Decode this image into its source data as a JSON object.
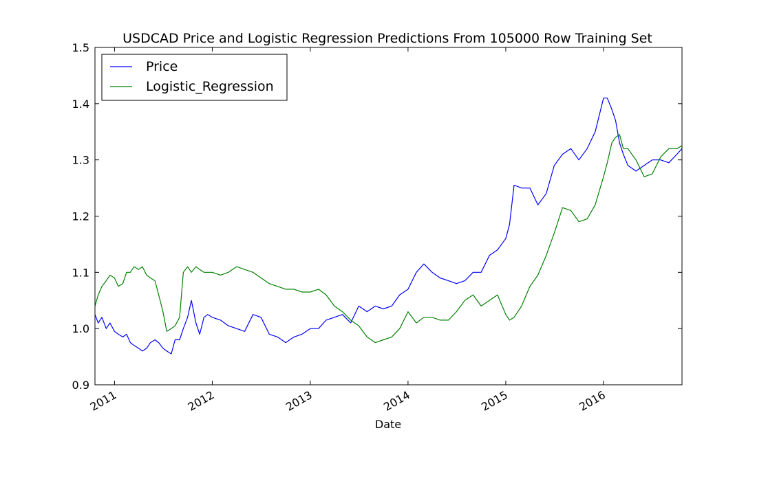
{
  "chart_data": {
    "type": "line",
    "title": "USDCAD Price and Logistic Regression Predictions From 105000 Row Training Set",
    "xlabel": "Date",
    "ylabel": "",
    "ylim": [
      0.9,
      1.5
    ],
    "yticks": [
      0.9,
      1.0,
      1.1,
      1.2,
      1.3,
      1.4,
      1.5
    ],
    "ytick_labels": [
      "0.9",
      "1.0",
      "1.1",
      "1.2",
      "1.3",
      "1.4",
      "1.5"
    ],
    "xlim": [
      "2010-10-20",
      "2016-10-20"
    ],
    "xticks": [
      "2011-01-01",
      "2012-01-01",
      "2013-01-01",
      "2014-01-01",
      "2015-01-01",
      "2016-01-01"
    ],
    "xtick_labels": [
      "2011",
      "2012",
      "2013",
      "2014",
      "2015",
      "2016"
    ],
    "grid": false,
    "legend_position": "top-left",
    "series": [
      {
        "name": "Price",
        "color": "#0000ff",
        "x": [
          "2010-10-20",
          "2010-11-01",
          "2010-11-15",
          "2010-12-01",
          "2010-12-15",
          "2011-01-01",
          "2011-01-15",
          "2011-02-01",
          "2011-02-15",
          "2011-03-01",
          "2011-03-15",
          "2011-04-01",
          "2011-04-15",
          "2011-05-01",
          "2011-05-15",
          "2011-06-01",
          "2011-06-15",
          "2011-07-01",
          "2011-07-15",
          "2011-08-01",
          "2011-08-15",
          "2011-09-01",
          "2011-09-15",
          "2011-10-01",
          "2011-10-15",
          "2011-11-01",
          "2011-11-15",
          "2011-12-01",
          "2011-12-15",
          "2012-01-01",
          "2012-02-01",
          "2012-03-01",
          "2012-04-01",
          "2012-05-01",
          "2012-06-01",
          "2012-07-01",
          "2012-08-01",
          "2012-09-01",
          "2012-10-01",
          "2012-11-01",
          "2012-12-01",
          "2013-01-01",
          "2013-02-01",
          "2013-03-01",
          "2013-04-01",
          "2013-05-01",
          "2013-06-01",
          "2013-07-01",
          "2013-08-01",
          "2013-09-01",
          "2013-10-01",
          "2013-11-01",
          "2013-12-01",
          "2014-01-01",
          "2014-02-01",
          "2014-03-01",
          "2014-04-01",
          "2014-05-01",
          "2014-06-01",
          "2014-07-01",
          "2014-08-01",
          "2014-09-01",
          "2014-10-01",
          "2014-11-01",
          "2014-12-01",
          "2015-01-01",
          "2015-01-15",
          "2015-02-01",
          "2015-03-01",
          "2015-04-01",
          "2015-05-01",
          "2015-06-01",
          "2015-07-01",
          "2015-08-01",
          "2015-09-01",
          "2015-10-01",
          "2015-11-01",
          "2015-12-01",
          "2016-01-01",
          "2016-01-15",
          "2016-02-01",
          "2016-02-15",
          "2016-03-01",
          "2016-03-15",
          "2016-04-01",
          "2016-05-01",
          "2016-06-01",
          "2016-07-01",
          "2016-08-01",
          "2016-09-01",
          "2016-10-01",
          "2016-10-20"
        ],
        "y": [
          1.025,
          1.01,
          1.02,
          1.0,
          1.01,
          0.995,
          0.99,
          0.985,
          0.99,
          0.975,
          0.97,
          0.965,
          0.96,
          0.965,
          0.975,
          0.98,
          0.975,
          0.965,
          0.96,
          0.955,
          0.98,
          0.98,
          1.0,
          1.02,
          1.05,
          1.01,
          0.99,
          1.02,
          1.025,
          1.02,
          1.015,
          1.005,
          1.0,
          0.995,
          1.025,
          1.02,
          0.99,
          0.985,
          0.975,
          0.985,
          0.99,
          1.0,
          1.0,
          1.015,
          1.02,
          1.025,
          1.01,
          1.04,
          1.03,
          1.04,
          1.035,
          1.04,
          1.06,
          1.07,
          1.1,
          1.115,
          1.1,
          1.09,
          1.085,
          1.08,
          1.085,
          1.1,
          1.1,
          1.13,
          1.14,
          1.16,
          1.185,
          1.255,
          1.25,
          1.25,
          1.22,
          1.24,
          1.29,
          1.31,
          1.32,
          1.3,
          1.32,
          1.35,
          1.41,
          1.41,
          1.39,
          1.37,
          1.33,
          1.31,
          1.29,
          1.28,
          1.29,
          1.3,
          1.3,
          1.295,
          1.31,
          1.32
        ]
      },
      {
        "name": "Logistic_Regression",
        "color": "#008000",
        "x": [
          "2010-10-20",
          "2010-11-01",
          "2010-11-15",
          "2010-12-01",
          "2010-12-15",
          "2011-01-01",
          "2011-01-15",
          "2011-02-01",
          "2011-02-15",
          "2011-03-01",
          "2011-03-15",
          "2011-04-01",
          "2011-04-15",
          "2011-05-01",
          "2011-05-15",
          "2011-06-01",
          "2011-06-15",
          "2011-07-01",
          "2011-07-15",
          "2011-08-01",
          "2011-08-15",
          "2011-09-01",
          "2011-09-15",
          "2011-10-01",
          "2011-10-15",
          "2011-11-01",
          "2011-11-15",
          "2011-12-01",
          "2011-12-15",
          "2012-01-01",
          "2012-02-01",
          "2012-03-01",
          "2012-04-01",
          "2012-05-01",
          "2012-06-01",
          "2012-07-01",
          "2012-08-01",
          "2012-09-01",
          "2012-10-01",
          "2012-11-01",
          "2012-12-01",
          "2013-01-01",
          "2013-02-01",
          "2013-03-01",
          "2013-04-01",
          "2013-05-01",
          "2013-06-01",
          "2013-07-01",
          "2013-08-01",
          "2013-09-01",
          "2013-10-01",
          "2013-11-01",
          "2013-12-01",
          "2014-01-01",
          "2014-02-01",
          "2014-03-01",
          "2014-04-01",
          "2014-05-01",
          "2014-06-01",
          "2014-07-01",
          "2014-08-01",
          "2014-09-01",
          "2014-10-01",
          "2014-11-01",
          "2014-12-01",
          "2015-01-01",
          "2015-01-15",
          "2015-02-01",
          "2015-03-01",
          "2015-04-01",
          "2015-05-01",
          "2015-06-01",
          "2015-07-01",
          "2015-08-01",
          "2015-09-01",
          "2015-10-01",
          "2015-11-01",
          "2015-12-01",
          "2016-01-01",
          "2016-01-15",
          "2016-02-01",
          "2016-02-15",
          "2016-03-01",
          "2016-03-15",
          "2016-04-01",
          "2016-05-01",
          "2016-06-01",
          "2016-07-01",
          "2016-08-01",
          "2016-09-01",
          "2016-10-01",
          "2016-10-20"
        ],
        "y": [
          1.04,
          1.06,
          1.075,
          1.085,
          1.095,
          1.09,
          1.075,
          1.08,
          1.1,
          1.1,
          1.11,
          1.105,
          1.11,
          1.095,
          1.09,
          1.085,
          1.06,
          1.03,
          0.995,
          1.0,
          1.005,
          1.02,
          1.1,
          1.11,
          1.1,
          1.11,
          1.105,
          1.1,
          1.1,
          1.1,
          1.095,
          1.1,
          1.11,
          1.105,
          1.1,
          1.09,
          1.08,
          1.075,
          1.07,
          1.07,
          1.065,
          1.065,
          1.07,
          1.06,
          1.04,
          1.03,
          1.015,
          1.005,
          0.985,
          0.975,
          0.98,
          0.985,
          1.0,
          1.03,
          1.01,
          1.02,
          1.02,
          1.015,
          1.015,
          1.03,
          1.05,
          1.06,
          1.04,
          1.05,
          1.06,
          1.025,
          1.015,
          1.02,
          1.04,
          1.075,
          1.095,
          1.13,
          1.17,
          1.215,
          1.21,
          1.19,
          1.195,
          1.22,
          1.27,
          1.295,
          1.33,
          1.34,
          1.345,
          1.32,
          1.32,
          1.3,
          1.27,
          1.275,
          1.305,
          1.32,
          1.32,
          1.325
        ]
      }
    ]
  }
}
